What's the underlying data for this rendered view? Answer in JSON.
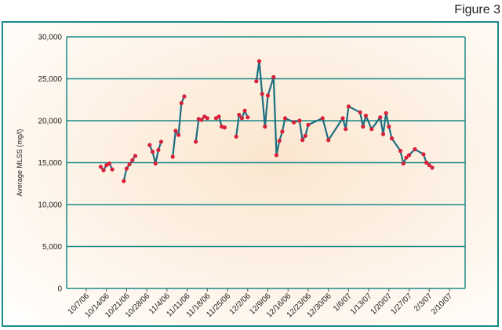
{
  "figure_label": "Figure 3",
  "colors": {
    "frame": "#1a8a8a",
    "grid": "#1a8a8a",
    "line": "#1b6f80",
    "marker": "#d8203a"
  },
  "chart_data": {
    "type": "line",
    "title": "",
    "xlabel": "",
    "ylabel": "Average MLSS (mg/l)",
    "ylim": [
      0,
      30000
    ],
    "y_ticks": [
      "0",
      "5,000",
      "10,000",
      "15,000",
      "20,000",
      "25,000",
      "30,000"
    ],
    "x_ticks": [
      "10/7/06",
      "10/14/06",
      "10/21/06",
      "10/28/06",
      "11/4/06",
      "11/11/06",
      "11/18/06",
      "11/25/06",
      "12/2/06",
      "12/9/06",
      "12/16/06",
      "12/23/06",
      "12/30/06",
      "1/6/07",
      "1/13/07",
      "1/20/07",
      "1/27/07",
      "2/3/07",
      "2/10/07"
    ],
    "grid": true,
    "series": [
      {
        "segments": [
          [
            [
              "10/12/06",
              14500
            ],
            [
              "10/13/06",
              14100
            ],
            [
              "10/14/06",
              14700
            ],
            [
              "10/15/06",
              14900
            ],
            [
              "10/16/06",
              14200
            ]
          ],
          [
            [
              "10/20/06",
              12800
            ],
            [
              "10/21/06",
              14300
            ],
            [
              "10/22/06",
              14800
            ],
            [
              "10/23/06",
              15300
            ],
            [
              "10/24/06",
              15800
            ]
          ],
          [
            [
              "10/29/06",
              17100
            ],
            [
              "10/30/06",
              16300
            ],
            [
              "10/31/06",
              14900
            ],
            [
              "11/1/06",
              16500
            ],
            [
              "11/2/06",
              17500
            ]
          ],
          [
            [
              "11/6/06",
              15700
            ],
            [
              "11/7/06",
              18800
            ],
            [
              "11/8/06",
              18300
            ],
            [
              "11/9/06",
              22100
            ],
            [
              "11/10/06",
              22900
            ]
          ],
          [
            [
              "11/14/06",
              17500
            ],
            [
              "11/15/06",
              20200
            ],
            [
              "11/16/06",
              20100
            ],
            [
              "11/17/06",
              20500
            ],
            [
              "11/18/06",
              20300
            ]
          ],
          [
            [
              "11/21/06",
              20300
            ],
            [
              "11/22/06",
              20500
            ],
            [
              "11/23/06",
              19300
            ],
            [
              "11/24/06",
              19200
            ]
          ],
          [
            [
              "11/28/06",
              18100
            ],
            [
              "11/29/06",
              20700
            ],
            [
              "11/30/06",
              20300
            ],
            [
              "12/1/06",
              21200
            ],
            [
              "12/2/06",
              20400
            ]
          ],
          [
            [
              "12/5/06",
              24700
            ],
            [
              "12/6/06",
              27100
            ],
            [
              "12/7/06",
              23200
            ],
            [
              "12/8/06",
              19300
            ],
            [
              "12/9/06",
              23000
            ],
            [
              "12/11/06",
              25200
            ],
            [
              "12/12/06",
              15900
            ],
            [
              "12/13/06",
              17600
            ],
            [
              "12/14/06",
              18700
            ],
            [
              "12/15/06",
              20300
            ],
            [
              "12/18/06",
              19800
            ],
            [
              "12/20/06",
              20000
            ],
            [
              "12/21/06",
              17700
            ],
            [
              "12/22/06",
              18200
            ],
            [
              "12/23/06",
              19500
            ],
            [
              "12/28/06",
              20300
            ],
            [
              "12/30/06",
              17700
            ],
            [
              "1/4/07",
              20300
            ],
            [
              "1/5/07",
              19000
            ],
            [
              "1/6/07",
              21700
            ],
            [
              "1/10/07",
              21000
            ],
            [
              "1/11/07",
              19300
            ],
            [
              "1/12/07",
              20600
            ],
            [
              "1/14/07",
              19000
            ],
            [
              "1/17/07",
              20400
            ],
            [
              "1/18/07",
              18400
            ],
            [
              "1/19/07",
              20900
            ],
            [
              "1/20/07",
              19300
            ],
            [
              "1/21/07",
              17900
            ],
            [
              "1/24/07",
              16400
            ],
            [
              "1/25/07",
              14900
            ],
            [
              "1/26/07",
              15600
            ],
            [
              "1/27/07",
              15900
            ],
            [
              "1/29/07",
              16600
            ],
            [
              "2/1/07",
              16000
            ],
            [
              "2/2/07",
              15000
            ],
            [
              "2/3/07",
              14700
            ],
            [
              "2/4/07",
              14400
            ]
          ]
        ]
      }
    ]
  }
}
